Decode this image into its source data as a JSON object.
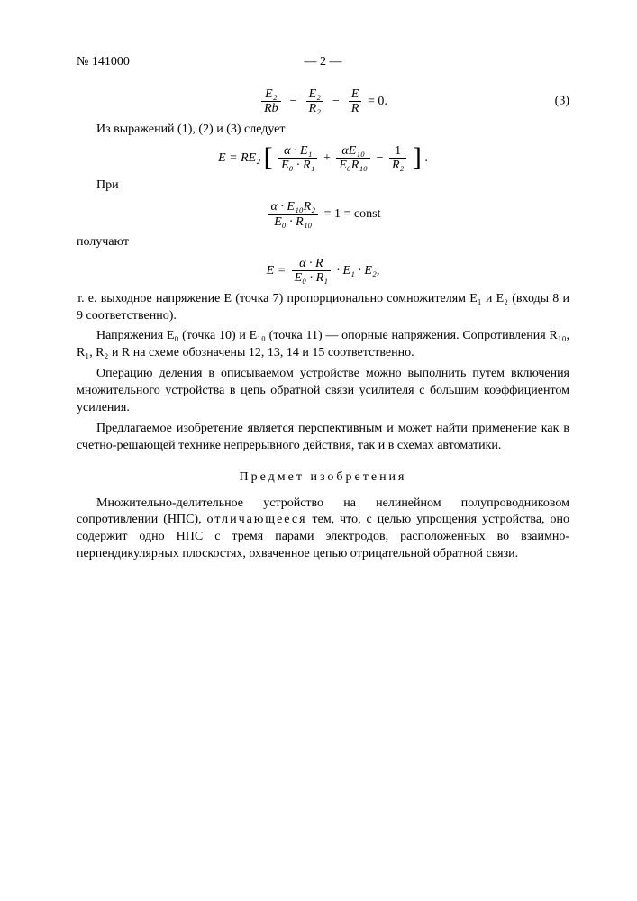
{
  "header": {
    "docNumber": "№ 141000",
    "pageLabel": "— 2 —"
  },
  "eq3": {
    "term1_num": "E₂",
    "term1_den": "Rb",
    "term2_num": "E₂",
    "term2_den": "R₂",
    "term3_num": "E",
    "term3_den": "R",
    "rhs": " = 0.",
    "number": "(3)"
  },
  "line_follows": "Из выражений (1), (2) и (3) следует",
  "eq_main": {
    "lhs": "E = RE₂ ",
    "t1_num": "α · E₁",
    "t1_den": "E₀ · R₁",
    "plus": " + ",
    "t2_num": "αE₁₀",
    "t2_den": "E₀R₁₀",
    "minus": " − ",
    "t3_num": "1",
    "t3_den": "R₂",
    "tail": " ."
  },
  "line_pri": "При",
  "eq_const": {
    "num": "α · E₁₀R₂",
    "den": "E₀ · R₁₀",
    "rhs": " = 1 = const"
  },
  "line_poluch": "получают",
  "eq_final": {
    "lhs": "E = ",
    "num": "α · R",
    "den": "E₀ · R₁",
    "tail": " · E₁ · E₂,"
  },
  "para1": "т. е. выходное напряжение E (точка 7) пропорционально сомножителям E₁ и E₂ (входы 8 и 9 соответственно).",
  "para2": "Напряжения E₀ (точка 10) и E₁₀ (точка 11) — опорные напряжения. Сопротивления R₁₀, R₁, R₂  и R на схеме обозначены 12, 13, 14 и 15 соответственно.",
  "para3": "Операцию деления в описываемом устройстве можно выполнить путем включения множительного устройства в цепь обратной связи усилителя с большим коэффициентом усиления.",
  "para4": "Предлагаемое изобретение является перспективным и может найти применение как в счетно-решающей технике непрерывного действия, так и в схемах автоматики.",
  "section_title": "Предмет изобретения",
  "claim_lead": "Множительно-делительное устройство на нелинейном полупроводниковом сопротивлении (НПС), ",
  "claim_distinct": "отличающееся",
  "claim_tail": " тем, что, с целью упрощения устройства, оно содержит одно НПС с тремя парами электродов, расположенных во взаимно-перпендикулярных плоскостях, охваченное цепью отрицательной обратной связи."
}
